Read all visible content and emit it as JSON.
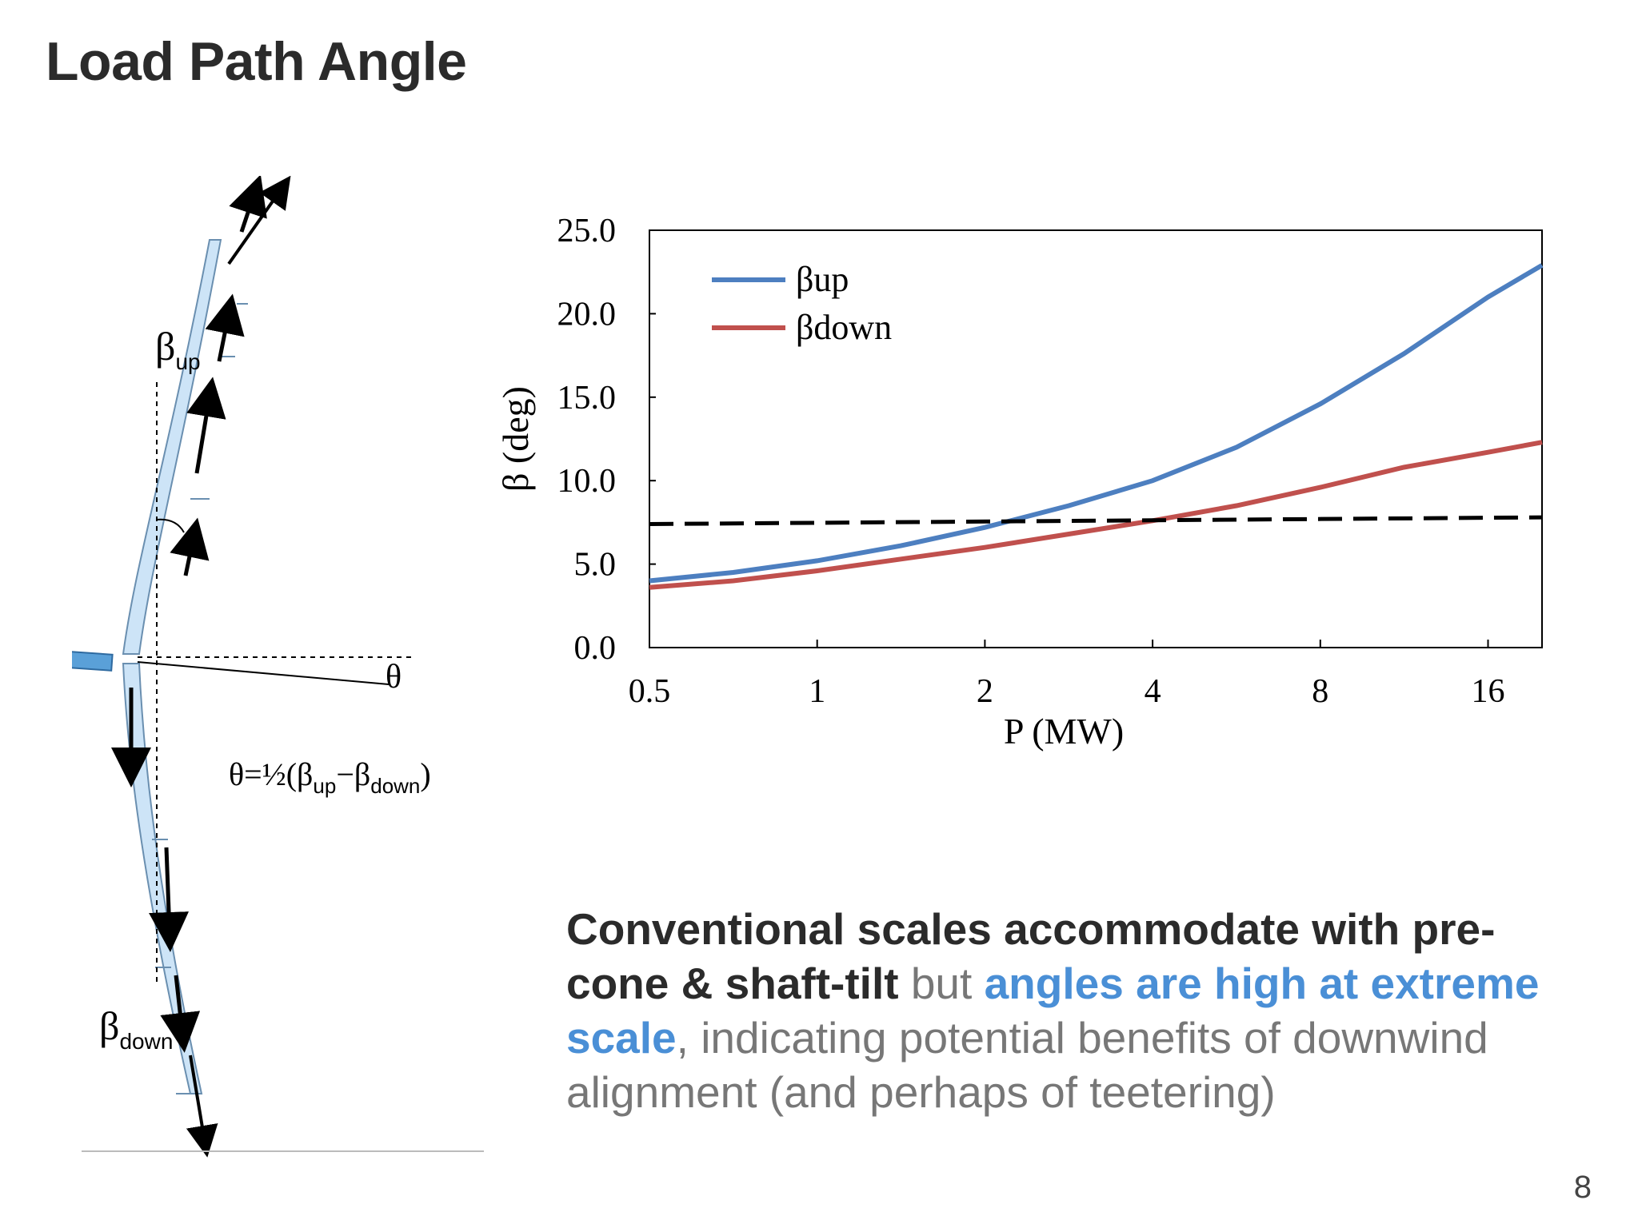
{
  "slide": {
    "title": "Load Path Angle",
    "page_number": "8",
    "body": {
      "bold_1": "Conventional scales accommodate with pre-cone & shaft-tilt",
      "plain_1": " but ",
      "accent": "angles are high at extreme scale",
      "plain_2": ", indicating potential benefits of downwind alignment (and perhaps of teetering)"
    }
  },
  "diagram": {
    "label_beta": "β",
    "label_up": "up",
    "label_down": "down",
    "label_theta": "θ",
    "formula": {
      "prefix": "θ=½(β",
      "sub_up": "up",
      "minus": "−β",
      "sub_down": "down",
      "suffix": ")"
    },
    "colors": {
      "blade_fill": "#cde4f7",
      "blade_stroke": "#6a8fb0",
      "hub": "#5aa0d8",
      "arrow": "#000000"
    }
  },
  "chart_data": {
    "type": "line",
    "xlabel": "P (MW)",
    "ylabel": "β (deg)",
    "x_scale": "log2",
    "xlim": [
      0.5,
      20
    ],
    "ylim": [
      0,
      25
    ],
    "xticks": [
      0.5,
      1,
      2,
      4,
      8,
      16
    ],
    "xtick_labels": [
      "0.5",
      "1",
      "2",
      "4",
      "8",
      "16"
    ],
    "yticks": [
      0,
      5,
      10,
      15,
      20,
      25
    ],
    "ytick_labels": [
      "0.0",
      "5.0",
      "10.0",
      "15.0",
      "20.0",
      "25.0"
    ],
    "legend_placement": "top-left",
    "grid": false,
    "series": [
      {
        "name": "βup",
        "color": "#4d7fc0",
        "x": [
          0.5,
          0.707,
          1,
          1.414,
          2,
          2.83,
          4,
          5.66,
          8,
          11.3,
          16,
          20
        ],
        "y": [
          4.0,
          4.5,
          5.2,
          6.1,
          7.2,
          8.5,
          10.0,
          12.0,
          14.6,
          17.6,
          21.0,
          22.9
        ]
      },
      {
        "name": "βdown",
        "color": "#c0504d",
        "x": [
          0.5,
          0.707,
          1,
          1.414,
          2,
          2.83,
          4,
          5.66,
          8,
          11.3,
          16,
          20
        ],
        "y": [
          3.6,
          4.0,
          4.6,
          5.3,
          6.0,
          6.8,
          7.6,
          8.5,
          9.6,
          10.8,
          11.7,
          12.3
        ]
      },
      {
        "style": "dashed",
        "color": "#000000",
        "x": [
          0.5,
          20
        ],
        "y": [
          7.4,
          7.8
        ]
      }
    ]
  }
}
